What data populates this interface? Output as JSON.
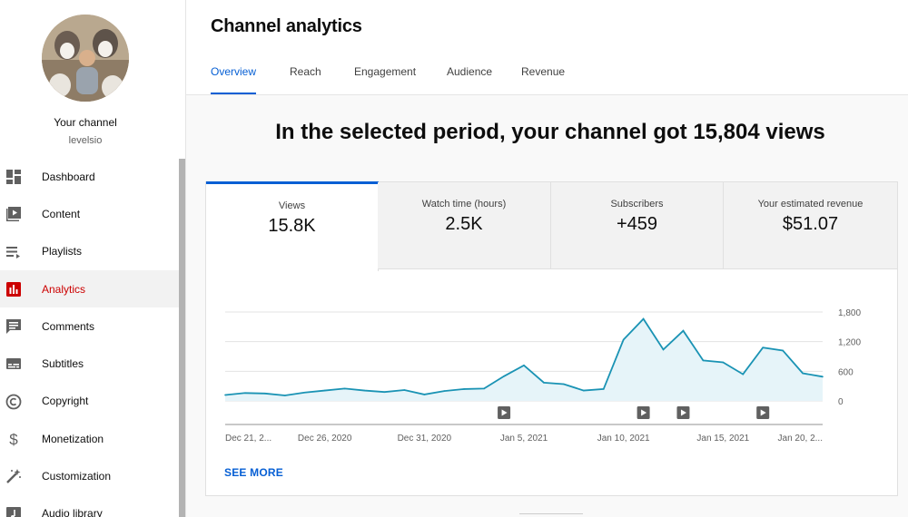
{
  "sidebar": {
    "channel_name": "Your channel",
    "channel_handle": "levelsio",
    "items": [
      {
        "label": "Dashboard",
        "icon": "dashboard-icon"
      },
      {
        "label": "Content",
        "icon": "content-icon"
      },
      {
        "label": "Playlists",
        "icon": "playlists-icon"
      },
      {
        "label": "Analytics",
        "icon": "analytics-icon",
        "active": true
      },
      {
        "label": "Comments",
        "icon": "comments-icon"
      },
      {
        "label": "Subtitles",
        "icon": "subtitles-icon"
      },
      {
        "label": "Copyright",
        "icon": "copyright-icon"
      },
      {
        "label": "Monetization",
        "icon": "monetization-icon"
      },
      {
        "label": "Customization",
        "icon": "customization-icon"
      },
      {
        "label": "Audio library",
        "icon": "audio-library-icon"
      }
    ]
  },
  "header": {
    "title": "Channel analytics",
    "tabs": [
      "Overview",
      "Reach",
      "Engagement",
      "Audience",
      "Revenue"
    ],
    "active_tab": "Overview"
  },
  "headline": "In the selected period, your channel got 15,804 views",
  "metrics": [
    {
      "label": "Views",
      "value": "15.8K"
    },
    {
      "label": "Watch time (hours)",
      "value": "2.5K"
    },
    {
      "label": "Subscribers",
      "value": "+459"
    },
    {
      "label": "Your estimated revenue",
      "value": "$51.07"
    }
  ],
  "see_more": "SEE MORE",
  "colors": {
    "accent": "#065fd4",
    "active_nav": "#cc0000",
    "line": "#1a93b4",
    "fill": "#e6f4f9"
  },
  "chart_data": {
    "type": "area",
    "series": [
      {
        "values": [
          120,
          160,
          150,
          110,
          170,
          210,
          250,
          210,
          180,
          220,
          130,
          200,
          240,
          250,
          500,
          720,
          370,
          340,
          210,
          240,
          1240,
          1660,
          1040,
          1420,
          820,
          780,
          540,
          1080,
          1020,
          560,
          490
        ]
      }
    ],
    "x_start_label": "Dec 21, 2...",
    "x_tick_labels": [
      "Dec 21, 2...",
      "Dec 26, 2020",
      "Dec 31, 2020",
      "Jan 5, 2021",
      "Jan 10, 2021",
      "Jan 15, 2021",
      "Jan 20, 2..."
    ],
    "y_tick_labels": [
      "1,800",
      "1,200",
      "600",
      "0"
    ],
    "ylim": [
      0,
      1800
    ],
    "grid": true,
    "video_markers": [
      14,
      21,
      23,
      27
    ]
  }
}
